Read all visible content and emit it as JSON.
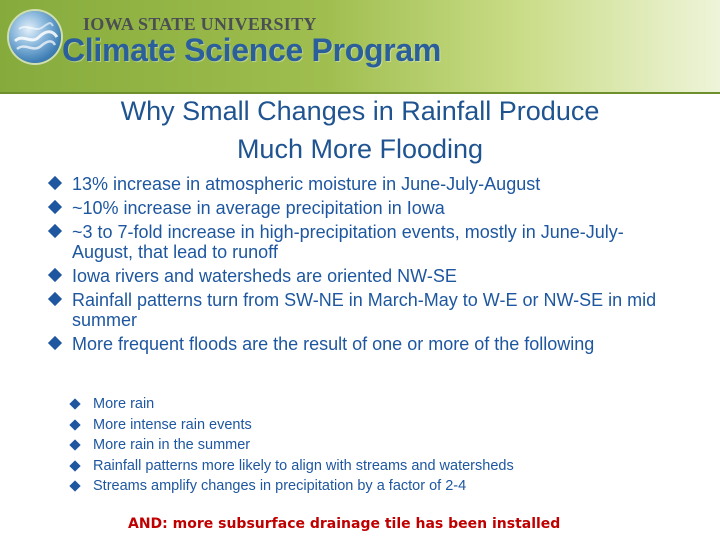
{
  "header": {
    "organization": "IOWA STATE UNIVERSITY",
    "program": "Climate Science Program",
    "logo_icon": "globe-wave-logo"
  },
  "slide": {
    "title_line1": "Why Small Changes in Rainfall Produce",
    "title_line2": "Much More Flooding",
    "bullets": [
      "13% increase in atmospheric moisture in June-July-August",
      "~10% increase in average precipitation in Iowa",
      "~3 to 7-fold increase in high-precipitation events, mostly in June-July-August, that lead to runoff",
      "Iowa rivers and watersheds are oriented  NW-SE",
      "Rainfall patterns turn from SW-NE in March-May to W-E or NW-SE in mid summer",
      "More frequent floods are the result of one or more of the following"
    ],
    "sub_bullets": [
      "More rain",
      "More intense rain events",
      "More rain in the summer",
      "Rainfall patterns more likely to align with streams and watersheds",
      "Streams amplify changes in precipitation by a factor of 2-4"
    ],
    "note": "AND:  more subsurface drainage tile has been installed"
  },
  "colors": {
    "title": "#1f5491",
    "text": "#1e57a0",
    "note": "#c00000",
    "banner": "#9fbe4f"
  }
}
